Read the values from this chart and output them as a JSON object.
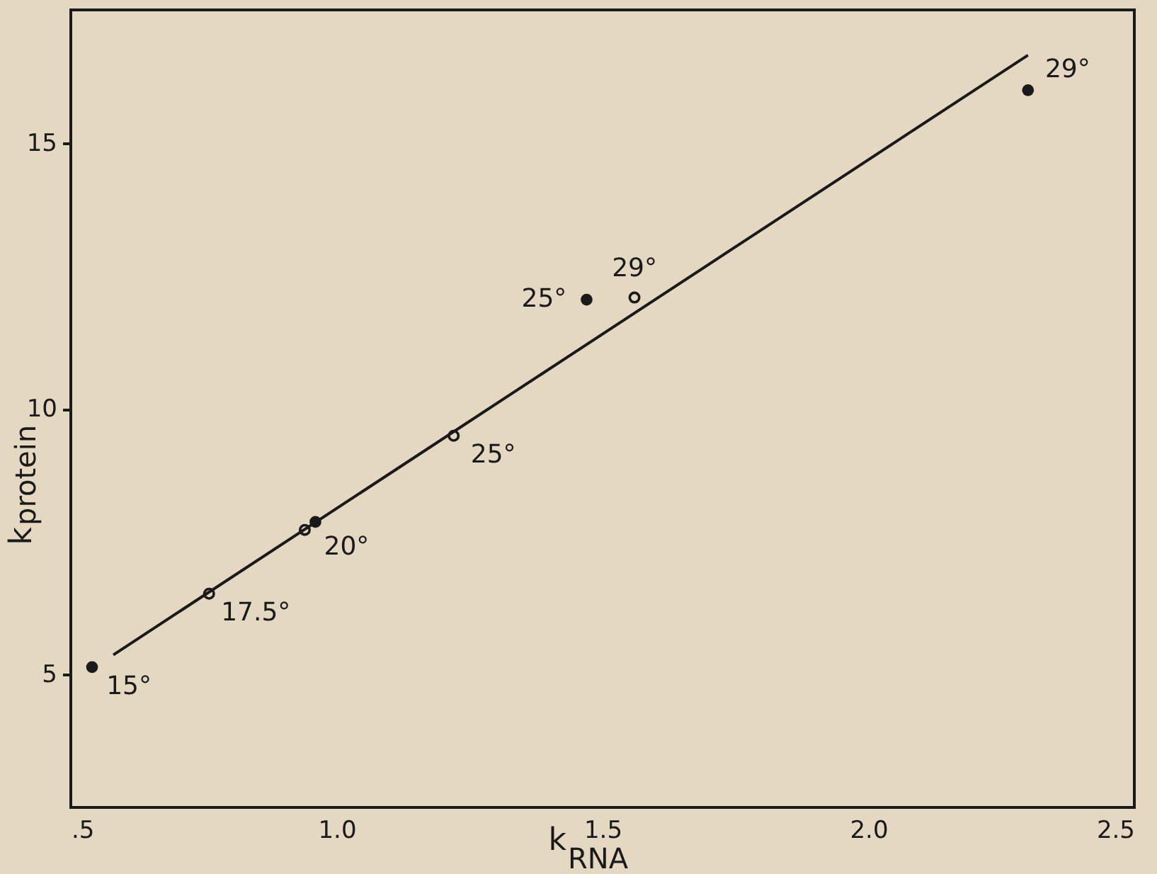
{
  "chart_data": {
    "type": "scatter",
    "xlabel": "k$_{RNA}$",
    "ylabel": "k$_{protein}$",
    "xlim": [
      0.5,
      2.5
    ],
    "ylim": [
      2.5,
      17.5
    ],
    "xticks": [
      {
        "value": 0.5,
        "label": ".5"
      },
      {
        "value": 1,
        "label": "1.0"
      },
      {
        "value": 1.5,
        "label": "1.5"
      },
      {
        "value": 2,
        "label": "2.0"
      },
      {
        "value": 2.5,
        "label": "2.5"
      }
    ],
    "yticks": [
      5,
      10,
      15
    ],
    "grid": false,
    "series": [
      {
        "marker": "circle",
        "color": "#1a1a1a",
        "x": [
          0.54,
          0.96,
          1.47,
          2.3
        ],
        "values": [
          5.14,
          7.87,
          12.05,
          15.99
        ]
      },
      {
        "marker": "circle",
        "color": "#1a1a1a",
        "x": [
          0.76,
          0.94,
          1.22,
          1.56
        ],
        "values": [
          6.52,
          7.72,
          9.49,
          12.09
        ]
      },
      {
        "type": "line",
        "color": "#1a1a1a",
        "x": [
          0.58,
          2.3
        ],
        "values": [
          5.37,
          16.65
        ]
      }
    ],
    "annotations": [
      {
        "text": "15°",
        "x": 0.54,
        "y": 5.14
      },
      {
        "text": "17.5°",
        "x": 0.76,
        "y": 6.52
      },
      {
        "text": "20°",
        "x": 0.96,
        "y": 7.87
      },
      {
        "text": "25°",
        "x": 1.22,
        "y": 9.49
      },
      {
        "text": "25°",
        "x": 1.47,
        "y": 12.05
      },
      {
        "text": "29°",
        "x": 1.56,
        "y": 12.09
      },
      {
        "text": "29°",
        "x": 2.3,
        "y": 15.99
      }
    ]
  }
}
